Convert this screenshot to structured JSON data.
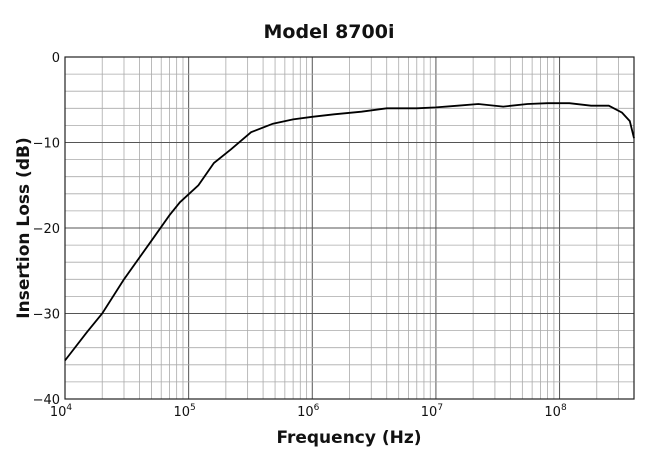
{
  "chart_data": {
    "type": "line",
    "title": "Model 8700i",
    "xlabel": "Frequency (Hz)",
    "ylabel": "Insertion Loss (dB)",
    "x_scale": "log",
    "xlim": [
      10000,
      400000000
    ],
    "ylim": [
      -40,
      0
    ],
    "x_ticks": [
      {
        "base": "10",
        "exp": "4",
        "value": 10000
      },
      {
        "base": "10",
        "exp": "5",
        "value": 100000
      },
      {
        "base": "10",
        "exp": "6",
        "value": 1000000
      },
      {
        "base": "10",
        "exp": "7",
        "value": 10000000
      },
      {
        "base": "10",
        "exp": "8",
        "value": 100000000
      }
    ],
    "y_ticks": [
      {
        "label": "0",
        "value": 0
      },
      {
        "label": "−10",
        "value": -10
      },
      {
        "label": "−20",
        "value": -20
      },
      {
        "label": "−30",
        "value": -30
      },
      {
        "label": "−40",
        "value": -40
      }
    ],
    "grid": true,
    "series": [
      {
        "name": "Insertion Loss",
        "x": [
          10000,
          15000,
          20000,
          30000,
          50000,
          70000,
          85000,
          120000,
          160000,
          220000,
          320000,
          480000,
          700000,
          1000000,
          1500000,
          2500000,
          4000000,
          7000000,
          10000000,
          15000000,
          22000000,
          35000000,
          55000000,
          80000000,
          120000000,
          180000000,
          250000000,
          320000000,
          370000000,
          400000000
        ],
        "y": [
          -35.5,
          -32.2,
          -30.0,
          -26.0,
          -21.5,
          -18.5,
          -17.0,
          -15.0,
          -12.4,
          -10.8,
          -8.8,
          -7.8,
          -7.3,
          -7.0,
          -6.7,
          -6.4,
          -6.0,
          -6.0,
          -5.9,
          -5.7,
          -5.5,
          -5.8,
          -5.5,
          -5.4,
          -5.4,
          -5.7,
          -5.7,
          -6.5,
          -7.5,
          -9.5
        ]
      }
    ]
  }
}
